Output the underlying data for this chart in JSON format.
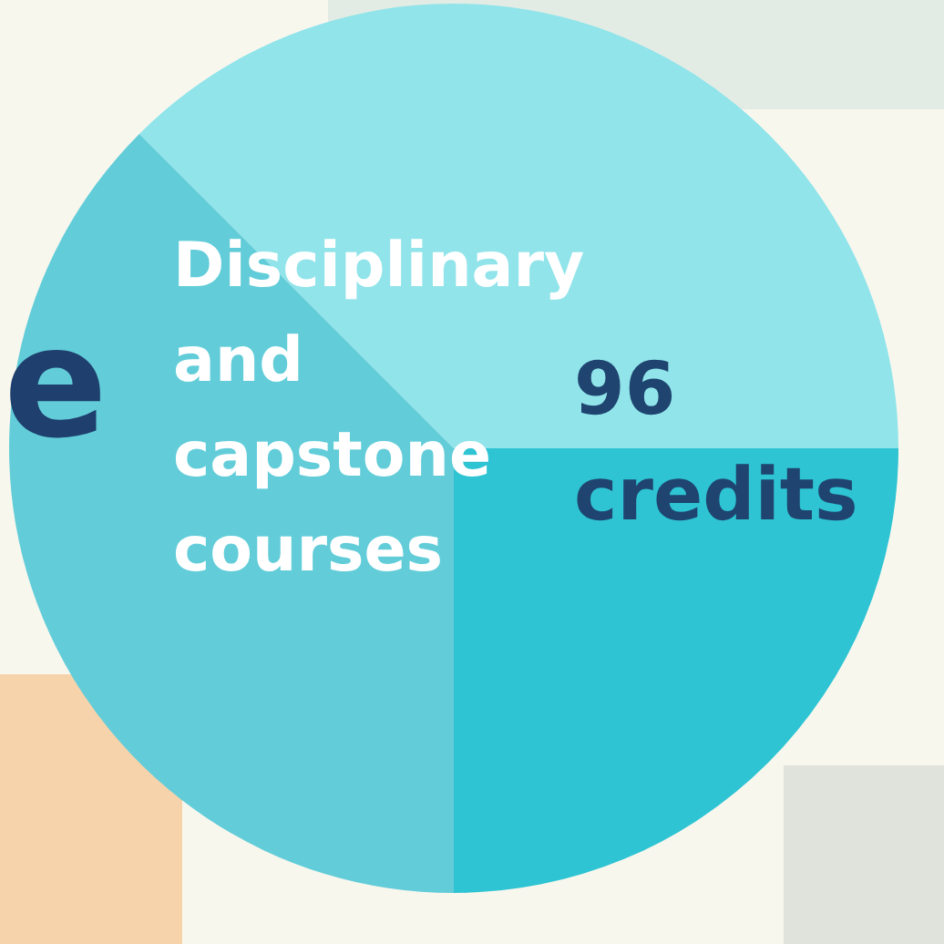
{
  "chart_data": {
    "type": "pie",
    "categories": [
      null,
      null,
      null
    ],
    "values": [
      37.5,
      25,
      37.5
    ],
    "colors": [
      "#90e4ea",
      "#2ec4d3",
      "#62cdd9"
    ],
    "annotations": [
      "Disciplinary and capstone courses",
      "96 credits",
      "e"
    ],
    "legend": false
  }
}
